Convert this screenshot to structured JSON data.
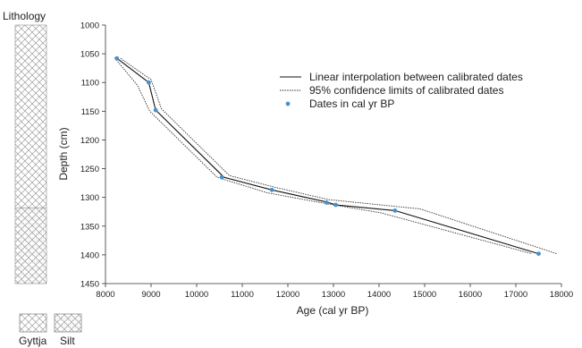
{
  "chart_data": {
    "type": "line",
    "lithology_label": "Lithology",
    "lithology_units": [
      {
        "name": "Gyttja",
        "top": 1000,
        "bottom": 1318
      },
      {
        "name": "Silt",
        "top": 1318,
        "bottom": 1450
      }
    ],
    "lithology_legend": [
      "Gyttja",
      "Silt"
    ],
    "xlabel": "Age (cal yr BP)",
    "ylabel": "Depth (cm)",
    "xlim": [
      8000,
      18000
    ],
    "ylim": [
      1000,
      1450
    ],
    "y_inverted": true,
    "x_ticks": [
      8000,
      9000,
      10000,
      11000,
      12000,
      13000,
      14000,
      15000,
      16000,
      17000,
      18000
    ],
    "y_ticks": [
      1000,
      1050,
      1100,
      1150,
      1200,
      1250,
      1300,
      1350,
      1400,
      1450
    ],
    "series": [
      {
        "name": "Linear interpolation between calibrated dates",
        "style": "solid",
        "color": "#111111",
        "points": [
          [
            8250,
            1058
          ],
          [
            8950,
            1100
          ],
          [
            9100,
            1148
          ],
          [
            10600,
            1265
          ],
          [
            11650,
            1287
          ],
          [
            12850,
            1308
          ],
          [
            13050,
            1313
          ],
          [
            14350,
            1323
          ],
          [
            17500,
            1398
          ]
        ]
      },
      {
        "name": "95% confidence limits of calibrated dates",
        "style": "dotted",
        "color": "#333333",
        "lower": [
          [
            8200,
            1057
          ],
          [
            8700,
            1105
          ],
          [
            8970,
            1150
          ],
          [
            10450,
            1265
          ],
          [
            11550,
            1292
          ],
          [
            12850,
            1311
          ],
          [
            14050,
            1327
          ],
          [
            17350,
            1398
          ]
        ],
        "upper": [
          [
            8330,
            1058
          ],
          [
            9000,
            1095
          ],
          [
            9230,
            1146
          ],
          [
            10720,
            1262
          ],
          [
            11750,
            1283
          ],
          [
            12900,
            1304
          ],
          [
            14900,
            1320
          ],
          [
            17900,
            1398
          ]
        ]
      },
      {
        "name": "Dates in cal yr BP",
        "style": "markers",
        "color": "#4a90c8",
        "points": [
          [
            8250,
            1058
          ],
          [
            8950,
            1100
          ],
          [
            9100,
            1148
          ],
          [
            10550,
            1265
          ],
          [
            11650,
            1287
          ],
          [
            12850,
            1309
          ],
          [
            13050,
            1313
          ],
          [
            14350,
            1323
          ],
          [
            17500,
            1398
          ]
        ]
      }
    ],
    "legend_position": "upper-right"
  }
}
